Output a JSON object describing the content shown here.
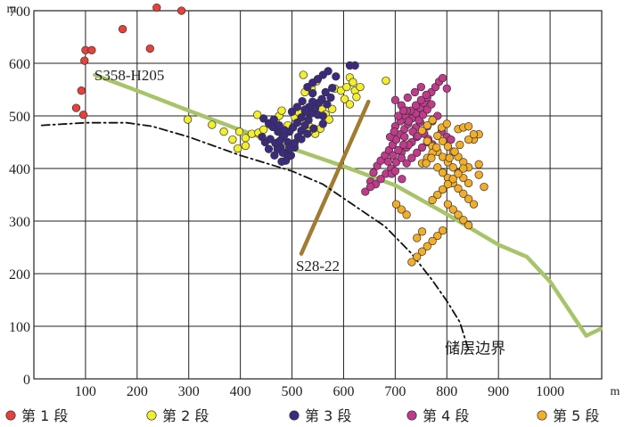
{
  "chart_data": {
    "type": "scatter",
    "xlim": [
      0,
      1100
    ],
    "ylim": [
      0,
      700
    ],
    "x_ticks": [
      100,
      200,
      300,
      400,
      500,
      600,
      700,
      800,
      900,
      1000
    ],
    "y_ticks": [
      0,
      100,
      200,
      300,
      400,
      500,
      600,
      700
    ],
    "x_unit": "m",
    "y_unit": "m",
    "grid": true,
    "legend_position": "bottom",
    "series": [
      {
        "name": "第 1 段",
        "color": "#e8403a",
        "points": [
          [
            82,
            515
          ],
          [
            92,
            548
          ],
          [
            96,
            502
          ],
          [
            98,
            605
          ],
          [
            100,
            625
          ],
          [
            112,
            625
          ],
          [
            172,
            665
          ],
          [
            238,
            706
          ],
          [
            286,
            700
          ],
          [
            225,
            628
          ]
        ]
      },
      {
        "name": "第 2 段",
        "color": "#f4ee2c",
        "points": [
          [
            298,
            493
          ],
          [
            345,
            483
          ],
          [
            368,
            470
          ],
          [
            385,
            455
          ],
          [
            398,
            470
          ],
          [
            410,
            458
          ],
          [
            422,
            466
          ],
          [
            395,
            438
          ],
          [
            410,
            443
          ],
          [
            435,
            468
          ],
          [
            445,
            474
          ],
          [
            458,
            483
          ],
          [
            468,
            492
          ],
          [
            475,
            500
          ],
          [
            480,
            510
          ],
          [
            492,
            482
          ],
          [
            506,
            497
          ],
          [
            513,
            507
          ],
          [
            520,
            492
          ],
          [
            532,
            482
          ],
          [
            525,
            545
          ],
          [
            538,
            552
          ],
          [
            548,
            522
          ],
          [
            558,
            512
          ],
          [
            565,
            503
          ],
          [
            578,
            513
          ],
          [
            572,
            493
          ],
          [
            555,
            476
          ],
          [
            545,
            466
          ],
          [
            533,
            470
          ],
          [
            583,
            552
          ],
          [
            595,
            548
          ],
          [
            606,
            555
          ],
          [
            612,
            573
          ],
          [
            618,
            564
          ],
          [
            622,
            548
          ],
          [
            632,
            555
          ],
          [
            602,
            532
          ],
          [
            612,
            522
          ],
          [
            625,
            536
          ],
          [
            682,
            567
          ],
          [
            522,
            578
          ],
          [
            548,
            566
          ],
          [
            433,
            502
          ]
        ]
      },
      {
        "name": "第 3 段",
        "color": "#3c2a80",
        "points": [
          [
            445,
            495
          ],
          [
            455,
            486
          ],
          [
            463,
            479
          ],
          [
            473,
            470
          ],
          [
            482,
            460
          ],
          [
            492,
            450
          ],
          [
            458,
            456
          ],
          [
            468,
            448
          ],
          [
            478,
            440
          ],
          [
            488,
            430
          ],
          [
            498,
            425
          ],
          [
            505,
            440
          ],
          [
            512,
            460
          ],
          [
            518,
            472
          ],
          [
            525,
            482
          ],
          [
            532,
            492
          ],
          [
            538,
            505
          ],
          [
            545,
            515
          ],
          [
            552,
            525
          ],
          [
            558,
            532
          ],
          [
            565,
            545
          ],
          [
            530,
            555
          ],
          [
            540,
            563
          ],
          [
            550,
            570
          ],
          [
            560,
            578
          ],
          [
            570,
            585
          ],
          [
            585,
            575
          ],
          [
            578,
            553
          ],
          [
            575,
            535
          ],
          [
            568,
            522
          ],
          [
            495,
            470
          ],
          [
            502,
            478
          ],
          [
            510,
            487
          ],
          [
            518,
            497
          ],
          [
            526,
            507
          ],
          [
            533,
            517
          ],
          [
            540,
            527
          ],
          [
            476,
            452
          ],
          [
            485,
            463
          ],
          [
            472,
            437
          ],
          [
            482,
            430
          ],
          [
            492,
            422
          ],
          [
            488,
            415
          ],
          [
            480,
            413
          ],
          [
            466,
            425
          ],
          [
            455,
            437
          ],
          [
            448,
            450
          ],
          [
            442,
            460
          ],
          [
            550,
            502
          ],
          [
            560,
            500
          ],
          [
            560,
            485
          ],
          [
            542,
            476
          ],
          [
            530,
            466
          ],
          [
            518,
            456
          ],
          [
            505,
            448
          ],
          [
            495,
            440
          ],
          [
            485,
            473
          ],
          [
            475,
            482
          ],
          [
            465,
            493
          ],
          [
            520,
            528
          ],
          [
            510,
            517
          ],
          [
            500,
            508
          ],
          [
            540,
            543
          ],
          [
            612,
            596
          ],
          [
            622,
            596
          ],
          [
            525,
            512
          ]
        ]
      },
      {
        "name": "第 4 段",
        "color": "#c13a8c",
        "points": [
          [
            642,
            356
          ],
          [
            652,
            375
          ],
          [
            658,
            392
          ],
          [
            665,
            405
          ],
          [
            672,
            415
          ],
          [
            680,
            425
          ],
          [
            688,
            435
          ],
          [
            695,
            445
          ],
          [
            702,
            455
          ],
          [
            710,
            465
          ],
          [
            718,
            475
          ],
          [
            725,
            485
          ],
          [
            732,
            495
          ],
          [
            740,
            505
          ],
          [
            748,
            515
          ],
          [
            755,
            525
          ],
          [
            762,
            535
          ],
          [
            770,
            545
          ],
          [
            778,
            555
          ],
          [
            785,
            565
          ],
          [
            792,
            572
          ],
          [
            800,
            552
          ],
          [
            712,
            430
          ],
          [
            722,
            440
          ],
          [
            732,
            450
          ],
          [
            742,
            460
          ],
          [
            752,
            470
          ],
          [
            762,
            480
          ],
          [
            772,
            490
          ],
          [
            782,
            500
          ],
          [
            702,
            412
          ],
          [
            712,
            420
          ],
          [
            722,
            410
          ],
          [
            732,
            420
          ],
          [
            742,
            430
          ],
          [
            752,
            440
          ],
          [
            762,
            450
          ],
          [
            692,
            400
          ],
          [
            682,
            390
          ],
          [
            672,
            380
          ],
          [
            662,
            370
          ],
          [
            652,
            365
          ],
          [
            700,
            480
          ],
          [
            710,
            490
          ],
          [
            720,
            500
          ],
          [
            730,
            510
          ],
          [
            740,
            520
          ],
          [
            750,
            530
          ],
          [
            760,
            540
          ],
          [
            700,
            530
          ],
          [
            712,
            520
          ],
          [
            722,
            510
          ],
          [
            740,
            478
          ],
          [
            748,
            488
          ],
          [
            756,
            466
          ],
          [
            764,
            456
          ],
          [
            772,
            446
          ],
          [
            690,
            460
          ],
          [
            698,
            470
          ],
          [
            706,
            500
          ],
          [
            716,
            510
          ],
          [
            726,
            490
          ],
          [
            738,
            545
          ],
          [
            750,
            555
          ],
          [
            790,
            470
          ],
          [
            800,
            460
          ],
          [
            808,
            455
          ],
          [
            693,
            390
          ],
          [
            700,
            395
          ],
          [
            713,
            380
          ],
          [
            726,
            445
          ],
          [
            718,
            460
          ],
          [
            746,
            492
          ],
          [
            754,
            502
          ],
          [
            762,
            512
          ],
          [
            770,
            522
          ],
          [
            724,
            535
          ],
          [
            734,
            470
          ],
          [
            744,
            462
          ],
          [
            686,
            413
          ],
          [
            696,
            425
          ],
          [
            706,
            435
          ],
          [
            716,
            445
          ]
        ]
      },
      {
        "name": "第 5 段",
        "color": "#f2ae2a",
        "points": [
          [
            752,
            472
          ],
          [
            762,
            482
          ],
          [
            772,
            492
          ],
          [
            782,
            462
          ],
          [
            792,
            452
          ],
          [
            802,
            442
          ],
          [
            812,
            432
          ],
          [
            822,
            422
          ],
          [
            832,
            412
          ],
          [
            842,
            402
          ],
          [
            852,
            455
          ],
          [
            862,
            465
          ],
          [
            782,
            402
          ],
          [
            792,
            392
          ],
          [
            802,
            382
          ],
          [
            812,
            372
          ],
          [
            822,
            362
          ],
          [
            832,
            352
          ],
          [
            842,
            342
          ],
          [
            852,
            332
          ],
          [
            762,
            452
          ],
          [
            772,
            442
          ],
          [
            782,
            432
          ],
          [
            792,
            422
          ],
          [
            802,
            412
          ],
          [
            812,
            402
          ],
          [
            822,
            392
          ],
          [
            832,
            382
          ],
          [
            842,
            372
          ],
          [
            802,
            332
          ],
          [
            812,
            322
          ],
          [
            822,
            312
          ],
          [
            832,
            302
          ],
          [
            842,
            292
          ],
          [
            792,
            282
          ],
          [
            782,
            272
          ],
          [
            772,
            262
          ],
          [
            762,
            252
          ],
          [
            752,
            242
          ],
          [
            742,
            232
          ],
          [
            732,
            222
          ],
          [
            722,
            312
          ],
          [
            712,
            322
          ],
          [
            702,
            332
          ],
          [
            772,
            340
          ],
          [
            782,
            350
          ],
          [
            792,
            360
          ],
          [
            802,
            370
          ],
          [
            812,
            380
          ],
          [
            822,
            390
          ],
          [
            832,
            400
          ],
          [
            752,
            410
          ],
          [
            762,
            420
          ],
          [
            772,
            430
          ],
          [
            842,
            455
          ],
          [
            852,
            465
          ],
          [
            822,
            475
          ],
          [
            832,
            478
          ],
          [
            842,
            480
          ],
          [
            862,
            388
          ],
          [
            872,
            365
          ],
          [
            862,
            408
          ],
          [
            742,
            268
          ],
          [
            752,
            280
          ],
          [
            805,
            420
          ],
          [
            815,
            432
          ],
          [
            825,
            445
          ],
          [
            790,
            478
          ],
          [
            800,
            485
          ],
          [
            760,
            410
          ],
          [
            770,
            420
          ],
          [
            780,
            440
          ]
        ]
      }
    ],
    "lines": [
      {
        "name": "S358-H205",
        "style": "solid",
        "color": "#a8c46a",
        "points": [
          [
            118,
            578
          ],
          [
            200,
            548
          ],
          [
            300,
            510
          ],
          [
            400,
            473
          ],
          [
            500,
            438
          ],
          [
            600,
            404
          ],
          [
            700,
            368
          ],
          [
            800,
            313
          ],
          [
            900,
            255
          ],
          [
            955,
            232
          ],
          [
            1000,
            185
          ],
          [
            1070,
            82
          ],
          [
            1098,
            95
          ]
        ]
      },
      {
        "name": "S28-22",
        "style": "solid",
        "color": "#a07c32",
        "points": [
          [
            518,
            238
          ],
          [
            648,
            527
          ]
        ]
      },
      {
        "name": "储层边界",
        "style": "dashdot",
        "color": "#111111",
        "points": [
          [
            15,
            482
          ],
          [
            100,
            487
          ],
          [
            180,
            487
          ],
          [
            230,
            480
          ],
          [
            300,
            460
          ],
          [
            400,
            425
          ],
          [
            500,
            395
          ],
          [
            560,
            370
          ],
          [
            620,
            330
          ],
          [
            680,
            290
          ],
          [
            730,
            240
          ],
          [
            770,
            190
          ],
          [
            800,
            148
          ],
          [
            825,
            108
          ],
          [
            842,
            55
          ]
        ]
      }
    ],
    "annotations": [
      {
        "text": "S358-H205",
        "x": 185,
        "y": 568
      },
      {
        "text": "S28-22",
        "x": 550,
        "y": 205
      },
      {
        "text": "储层边界",
        "x": 855,
        "y": 48
      }
    ]
  }
}
